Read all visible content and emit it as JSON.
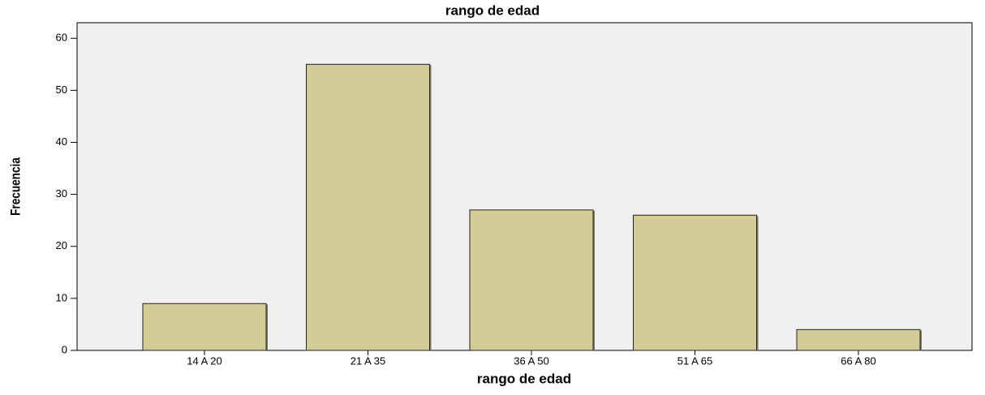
{
  "chart_data": {
    "type": "bar",
    "title": "rango de edad",
    "x_label": "rango de edad",
    "y_label": "Frecuencia",
    "categories": [
      "14 A 20",
      "21 A 35",
      "36 A 50",
      "51 A 65",
      "66 A 80"
    ],
    "values": [
      9,
      55,
      27,
      26,
      4
    ],
    "color": "#d3cc96",
    "ylim": [
      0,
      63
    ],
    "yticks": [
      0,
      10,
      20,
      30,
      40,
      50,
      60
    ],
    "grid": false
  }
}
